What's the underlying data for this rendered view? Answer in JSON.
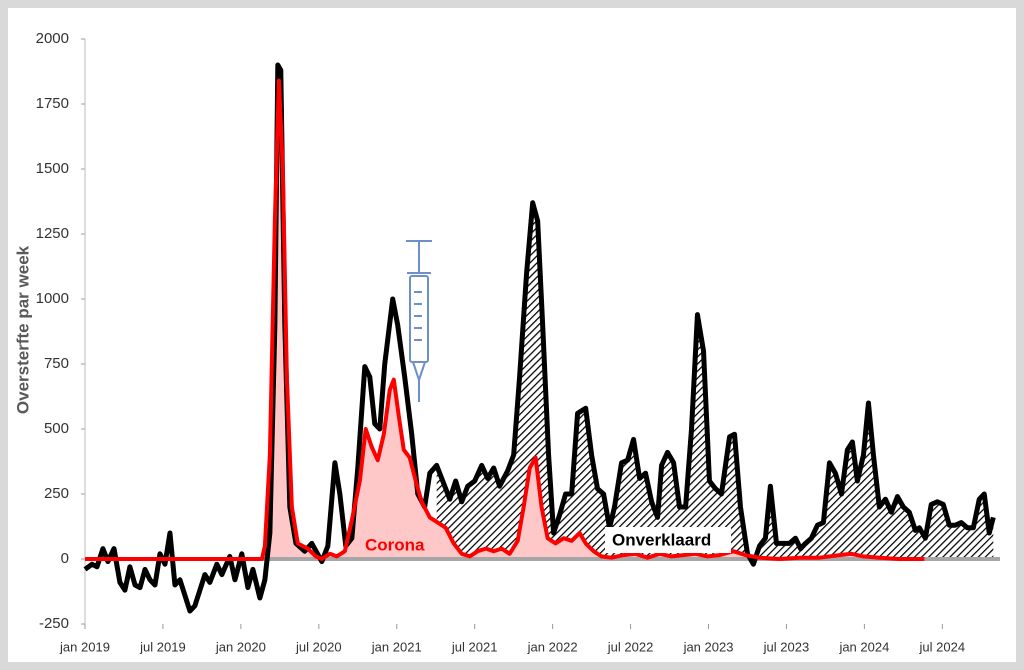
{
  "chart_data": {
    "type": "line",
    "ylabel": "Oversterfte par week",
    "annotations": [
      "Corona",
      "Onverklaard"
    ],
    "xlim": [
      2019,
      2024.87
    ],
    "xticks": [
      {
        "value": 2019,
        "label": "jan 2019"
      },
      {
        "value": 2019.5,
        "label": "jul 2019"
      },
      {
        "value": 2020,
        "label": "jan 2020"
      },
      {
        "value": 2020.5,
        "label": "jul 2020"
      },
      {
        "value": 2021,
        "label": "jan 2021"
      },
      {
        "value": 2021.5,
        "label": "jul 2021"
      },
      {
        "value": 2022,
        "label": "jan 2022"
      },
      {
        "value": 2022.5,
        "label": "jul 2022"
      },
      {
        "value": 2023,
        "label": "jan 2023"
      },
      {
        "value": 2023.5,
        "label": "jul 2023"
      },
      {
        "value": 2024,
        "label": "jan 2024"
      },
      {
        "value": 2024.5,
        "label": "jul 2024"
      }
    ],
    "ylim": [
      -250,
      2000
    ],
    "yticks": [
      -250,
      0,
      250,
      500,
      750,
      1000,
      1250,
      1500,
      1750,
      2000
    ],
    "grid": false,
    "series": [
      {
        "name": "Onverklaard",
        "color": "#000000",
        "x": [
          2019,
          2019.045,
          2019.077,
          2019.115,
          2019.147,
          2019.186,
          2019.224,
          2019.256,
          2019.288,
          2019.321,
          2019.353,
          2019.385,
          2019.417,
          2019.449,
          2019.481,
          2019.513,
          2019.545,
          2019.577,
          2019.609,
          2019.673,
          2019.705,
          2019.769,
          2019.801,
          2019.846,
          2019.878,
          2019.929,
          2019.962,
          2020.006,
          2020.045,
          2020.077,
          2020.122,
          2020.154,
          2020.186,
          2020.218,
          2020.237,
          2020.256,
          2020.282,
          2020.314,
          2020.353,
          2020.41,
          2020.455,
          2020.519,
          2020.558,
          2020.603,
          2020.635,
          2020.673,
          2020.712,
          2020.75,
          2020.795,
          2020.827,
          2020.859,
          2020.891,
          2020.923,
          2020.974,
          2021.006,
          2021.051,
          2021.096,
          2021.135,
          2021.179,
          2021.212,
          2021.256,
          2021.295,
          2021.34,
          2021.378,
          2021.417,
          2021.455,
          2021.5,
          2021.545,
          2021.583,
          2021.622,
          2021.66,
          2021.712,
          2021.75,
          2021.788,
          2021.833,
          2021.872,
          2021.904,
          2021.936,
          2021.974,
          2022.006,
          2022.045,
          2022.083,
          2022.122,
          2022.16,
          2022.212,
          2022.25,
          2022.288,
          2022.327,
          2022.365,
          2022.397,
          2022.442,
          2022.481,
          2022.519,
          2022.558,
          2022.596,
          2022.635,
          2022.673,
          2022.699,
          2022.737,
          2022.776,
          2022.814,
          2022.853,
          2022.891,
          2022.929,
          2022.968,
          2023.006,
          2023.045,
          2023.083,
          2023.135,
          2023.167,
          2023.205,
          2023.25,
          2023.288,
          2023.327,
          2023.365,
          2023.397,
          2023.436,
          2023.474,
          2023.519,
          2023.558,
          2023.59,
          2023.622,
          2023.66,
          2023.699,
          2023.737,
          2023.776,
          2023.814,
          2023.853,
          2023.891,
          2023.923,
          2023.955,
          2023.994,
          2024.026,
          2024.058,
          2024.096,
          2024.135,
          2024.173,
          2024.212,
          2024.25,
          2024.288,
          2024.327,
          2024.353,
          2024.391,
          2024.429,
          2024.468,
          2024.506,
          2024.545,
          2024.583,
          2024.622,
          2024.66,
          2024.699,
          2024.737,
          2024.769,
          2024.801,
          2024.827
        ],
        "values": [
          -40,
          -20,
          -30,
          40,
          -10,
          40,
          -90,
          -120,
          -30,
          -100,
          -110,
          -40,
          -80,
          -100,
          20,
          -20,
          100,
          -100,
          -80,
          -200,
          -180,
          -60,
          -90,
          -20,
          -60,
          10,
          -80,
          20,
          -110,
          -40,
          -150,
          -80,
          100,
          900,
          1900,
          1880,
          900,
          200,
          60,
          30,
          60,
          -10,
          50,
          370,
          250,
          50,
          80,
          350,
          740,
          700,
          520,
          500,
          750,
          1000,
          900,
          700,
          480,
          250,
          200,
          330,
          360,
          300,
          230,
          300,
          220,
          280,
          300,
          360,
          310,
          350,
          280,
          340,
          400,
          700,
          1100,
          1370,
          1300,
          900,
          400,
          100,
          170,
          250,
          250,
          560,
          580,
          400,
          270,
          250,
          120,
          200,
          370,
          380,
          460,
          310,
          330,
          220,
          160,
          360,
          410,
          370,
          200,
          200,
          500,
          940,
          800,
          300,
          270,
          250,
          470,
          480,
          200,
          20,
          -20,
          50,
          80,
          280,
          60,
          60,
          60,
          80,
          40,
          60,
          80,
          130,
          140,
          370,
          330,
          250,
          420,
          450,
          300,
          400,
          600,
          400,
          200,
          230,
          180,
          240,
          200,
          180,
          110,
          120,
          80,
          210,
          220,
          210,
          130,
          130,
          140,
          120,
          120,
          230,
          250,
          100,
          160
        ]
      },
      {
        "name": "Corona",
        "color": "#ff0000",
        "x": [
          2019,
          2020.135,
          2020.154,
          2020.186,
          2020.218,
          2020.244,
          2020.269,
          2020.295,
          2020.327,
          2020.365,
          2020.429,
          2020.481,
          2020.519,
          2020.571,
          2020.615,
          2020.667,
          2020.712,
          2020.763,
          2020.801,
          2020.84,
          2020.878,
          2020.917,
          2020.955,
          2020.981,
          2021.013,
          2021.045,
          2021.083,
          2021.122,
          2021.16,
          2021.212,
          2021.263,
          2021.314,
          2021.365,
          2021.417,
          2021.468,
          2021.519,
          2021.571,
          2021.622,
          2021.673,
          2021.724,
          2021.776,
          2021.814,
          2021.853,
          2021.891,
          2021.929,
          2021.968,
          2022.019,
          2022.071,
          2022.122,
          2022.173,
          2022.212,
          2022.263,
          2022.314,
          2022.378,
          2022.455,
          2022.532,
          2022.609,
          2022.686,
          2022.763,
          2022.84,
          2022.917,
          2022.994,
          2023.071,
          2023.16,
          2023.237,
          2023.327,
          2023.455,
          2023.583,
          2023.712,
          2023.84,
          2023.917,
          2023.994,
          2024.096,
          2024.224,
          2024.385
        ],
        "values": [
          0,
          0,
          50,
          400,
          1300,
          1840,
          1500,
          700,
          200,
          60,
          40,
          10,
          0,
          20,
          10,
          30,
          150,
          300,
          500,
          430,
          380,
          480,
          650,
          690,
          550,
          420,
          390,
          300,
          220,
          160,
          140,
          120,
          60,
          20,
          10,
          30,
          40,
          30,
          40,
          20,
          70,
          200,
          350,
          390,
          200,
          80,
          60,
          80,
          70,
          100,
          60,
          30,
          10,
          5,
          15,
          20,
          5,
          20,
          10,
          15,
          20,
          10,
          15,
          30,
          15,
          5,
          0,
          5,
          5,
          15,
          20,
          10,
          5,
          0,
          0
        ]
      }
    ]
  }
}
